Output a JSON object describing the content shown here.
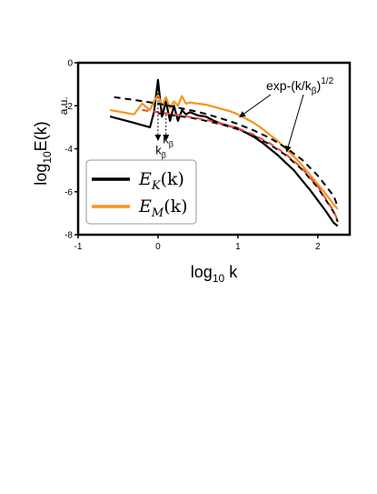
{
  "chart_data": {
    "type": "line",
    "xlabel": "log",
    "xlabel_sub": "10",
    "xlabel_tail": " k",
    "ylabel": "log",
    "ylabel_sub": "10",
    "ylabel_tail": "E(k)",
    "yunit": "a.u.",
    "xlim": [
      -1,
      2.4
    ],
    "ylim": [
      -8,
      0
    ],
    "x_ticks": [
      -1,
      0,
      1,
      2
    ],
    "x_tick_labels": [
      "-1",
      "0",
      "1",
      "2"
    ],
    "y_ticks": [
      -8,
      -6,
      -4,
      -2,
      0
    ],
    "y_tick_labels": [
      "-8",
      "-6",
      "-4",
      "-2",
      "0"
    ],
    "grid": false,
    "legend_position": "bottom-left",
    "series": [
      {
        "name": "E_K(k)",
        "name_main": "E",
        "name_sub": "K",
        "name_arg": "(k)",
        "color": "#000000",
        "x": [
          -0.6,
          -0.45,
          -0.3,
          -0.1,
          -0.05,
          0.0,
          0.05,
          0.1,
          0.15,
          0.2,
          0.25,
          0.3,
          0.35,
          0.4,
          0.5,
          0.6,
          0.7,
          0.8,
          0.9,
          1.0,
          1.1,
          1.2,
          1.3,
          1.4,
          1.5,
          1.6,
          1.7,
          1.8,
          1.9,
          2.0,
          2.1,
          2.2,
          2.25
        ],
        "y": [
          -2.5,
          -2.65,
          -2.8,
          -3.0,
          -2.3,
          -0.8,
          -2.5,
          -1.8,
          -2.7,
          -2.0,
          -2.7,
          -2.2,
          -2.4,
          -2.3,
          -2.45,
          -2.5,
          -2.7,
          -2.85,
          -2.95,
          -3.05,
          -3.25,
          -3.45,
          -3.7,
          -4.0,
          -4.3,
          -4.65,
          -5.0,
          -5.45,
          -5.9,
          -6.4,
          -6.9,
          -7.45,
          -7.6
        ]
      },
      {
        "name": "E_M(k)",
        "name_main": "E",
        "name_sub": "M",
        "name_arg": "(k)",
        "color": "#f7941d",
        "x": [
          -0.6,
          -0.45,
          -0.3,
          -0.2,
          -0.1,
          -0.05,
          0.0,
          0.05,
          0.1,
          0.15,
          0.2,
          0.25,
          0.3,
          0.35,
          0.4,
          0.5,
          0.6,
          0.7,
          0.8,
          0.9,
          1.0,
          1.1,
          1.2,
          1.3,
          1.4,
          1.5,
          1.6,
          1.7,
          1.8,
          1.9,
          2.0,
          2.1,
          2.2,
          2.25
        ],
        "y": [
          -2.2,
          -2.3,
          -2.4,
          -1.9,
          -2.2,
          -1.8,
          -1.5,
          -2.0,
          -1.6,
          -2.1,
          -1.8,
          -2.0,
          -1.55,
          -1.9,
          -1.85,
          -1.9,
          -1.95,
          -2.05,
          -2.15,
          -2.25,
          -2.4,
          -2.6,
          -2.8,
          -3.05,
          -3.35,
          -3.65,
          -4.0,
          -4.35,
          -4.75,
          -5.2,
          -5.65,
          -6.1,
          -6.6,
          -6.8
        ]
      }
    ],
    "fits": [
      {
        "style": "dashed",
        "color": "#000000",
        "x": [
          -0.55,
          -0.2,
          0.0,
          0.2,
          0.4,
          0.6,
          0.8,
          1.0,
          1.2,
          1.4,
          1.6,
          1.8,
          2.0,
          2.2,
          2.25
        ],
        "y": [
          -1.6,
          -1.78,
          -1.9,
          -2.05,
          -2.2,
          -2.38,
          -2.6,
          -2.85,
          -3.15,
          -3.5,
          -3.95,
          -4.5,
          -5.25,
          -6.2,
          -6.7
        ]
      },
      {
        "style": "dashed",
        "color": "#000000",
        "x": [
          0.0,
          0.2,
          0.4,
          0.6,
          0.8,
          1.0,
          1.2,
          1.4,
          1.6,
          1.8,
          2.0,
          2.2,
          2.25
        ],
        "y": [
          -2.35,
          -2.45,
          -2.55,
          -2.7,
          -2.87,
          -3.1,
          -3.4,
          -3.8,
          -4.3,
          -4.95,
          -5.8,
          -6.95,
          -7.4
        ]
      },
      {
        "style": "dashed",
        "color": "#e8453c",
        "x": [
          -0.2,
          0.0,
          0.2,
          0.4,
          0.6,
          0.8,
          1.0,
          1.2,
          1.4,
          1.6,
          1.8,
          2.0,
          2.2,
          2.25
        ],
        "y": [
          -2.2,
          -2.3,
          -2.4,
          -2.52,
          -2.66,
          -2.83,
          -3.05,
          -3.35,
          -3.75,
          -4.25,
          -4.9,
          -5.75,
          -6.9,
          -7.35
        ]
      }
    ],
    "annotations": {
      "fit_label_main": "exp-(k/k",
      "fit_label_sub": "β",
      "fit_label_close": ")",
      "fit_label_sup": "1/2",
      "kbeta_main": "k",
      "kbeta_sub": "β",
      "kbeta_x": [
        0.0,
        0.1
      ],
      "fit_arrow_targets": [
        [
          1.0,
          -2.6
        ],
        [
          1.6,
          -4.3
        ]
      ]
    }
  }
}
